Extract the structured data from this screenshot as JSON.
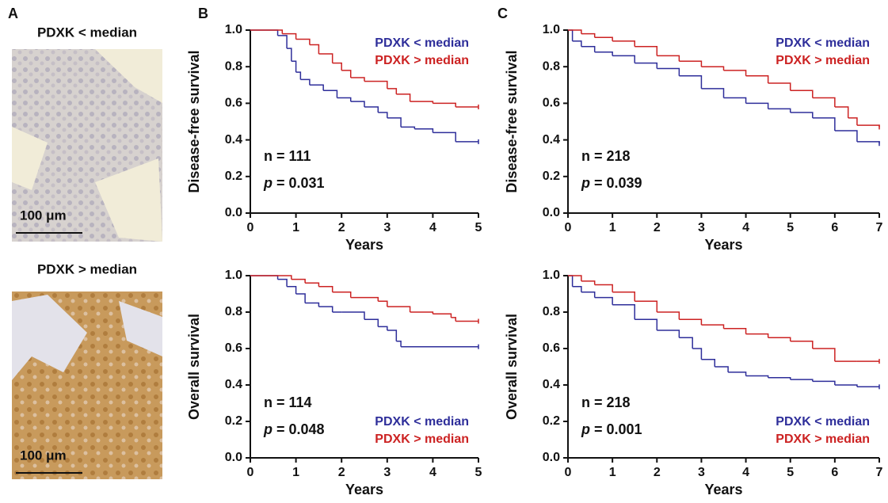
{
  "panel_labels": [
    "A",
    "B",
    "C"
  ],
  "images": [
    {
      "label": "PDXK < median",
      "scale": "100 μm"
    },
    {
      "label": "PDXK > median",
      "scale": "100 μm"
    }
  ],
  "chart_data": [
    {
      "type": "line",
      "step": true,
      "xlabel": "Years",
      "ylabel": "Disease-free survival",
      "legend": "upper right",
      "annotations": [
        "n = 111",
        "p = 0.031"
      ],
      "xlim": [
        0,
        5
      ],
      "xticks": [
        0,
        1,
        2,
        3,
        4,
        5
      ],
      "ylim": [
        0,
        1
      ],
      "yticks": [
        {
          "value": 0,
          "label": "0.0"
        },
        0.2,
        0.4,
        0.6,
        0.8,
        {
          "value": 1,
          "label": "1.0"
        }
      ],
      "series": [
        {
          "name": "PDXK < median",
          "color": "#2e2e9a",
          "x": [
            0,
            0.6,
            0.8,
            0.9,
            1.0,
            1.1,
            1.3,
            1.6,
            1.9,
            2.2,
            2.5,
            2.8,
            3.0,
            3.3,
            3.6,
            4.0,
            4.5,
            5.0
          ],
          "values": [
            1,
            0.97,
            0.9,
            0.83,
            0.77,
            0.73,
            0.7,
            0.67,
            0.63,
            0.61,
            0.58,
            0.55,
            0.52,
            0.47,
            0.46,
            0.44,
            0.39,
            0.39
          ]
        },
        {
          "name": "PDXK > median",
          "color": "#cc2222",
          "x": [
            0,
            0.7,
            1.0,
            1.3,
            1.5,
            1.8,
            2.0,
            2.2,
            2.5,
            3.0,
            3.2,
            3.5,
            4.0,
            4.5,
            5.0
          ],
          "values": [
            1,
            0.98,
            0.95,
            0.92,
            0.87,
            0.82,
            0.78,
            0.74,
            0.72,
            0.68,
            0.65,
            0.61,
            0.6,
            0.58,
            0.58
          ]
        }
      ]
    },
    {
      "type": "line",
      "step": true,
      "xlabel": "Years",
      "ylabel": "Overall survival",
      "legend": "lower right",
      "annotations": [
        "n = 114",
        "p = 0.048"
      ],
      "xlim": [
        0,
        5
      ],
      "xticks": [
        0,
        1,
        2,
        3,
        4,
        5
      ],
      "ylim": [
        0,
        1
      ],
      "yticks": [
        {
          "value": 0,
          "label": "0.0"
        },
        0.2,
        0.4,
        0.6,
        0.8,
        {
          "value": 1,
          "label": "1.0"
        }
      ],
      "series": [
        {
          "name": "PDXK < median",
          "color": "#2e2e9a",
          "x": [
            0,
            0.6,
            0.8,
            1.0,
            1.2,
            1.5,
            1.8,
            2.0,
            2.5,
            2.8,
            3.0,
            3.2,
            3.3,
            5.0
          ],
          "values": [
            1,
            0.98,
            0.94,
            0.9,
            0.85,
            0.83,
            0.8,
            0.8,
            0.76,
            0.72,
            0.7,
            0.64,
            0.61,
            0.61
          ]
        },
        {
          "name": "PDXK > median",
          "color": "#cc2222",
          "x": [
            0,
            0.9,
            1.2,
            1.5,
            1.8,
            2.2,
            2.8,
            3.0,
            3.5,
            4.0,
            4.4,
            4.5,
            5.0
          ],
          "values": [
            1,
            0.98,
            0.96,
            0.94,
            0.91,
            0.88,
            0.86,
            0.83,
            0.8,
            0.79,
            0.77,
            0.75,
            0.75
          ]
        }
      ]
    },
    {
      "type": "line",
      "step": true,
      "xlabel": "Years",
      "ylabel": "Disease-free survival",
      "legend": "upper right",
      "annotations": [
        "n = 218",
        "p = 0.039"
      ],
      "xlim": [
        0,
        7
      ],
      "xticks": [
        0,
        1,
        2,
        3,
        4,
        5,
        6,
        7
      ],
      "ylim": [
        0,
        1
      ],
      "yticks": [
        {
          "value": 0,
          "label": "0.0"
        },
        0.2,
        0.4,
        0.6,
        0.8,
        {
          "value": 1,
          "label": "1.0"
        }
      ],
      "series": [
        {
          "name": "PDXK < median",
          "color": "#2e2e9a",
          "x": [
            0,
            0.1,
            0.3,
            0.6,
            1.0,
            1.5,
            2.0,
            2.5,
            3.0,
            3.5,
            4.0,
            4.5,
            5.0,
            5.5,
            6.0,
            6.5,
            7.0
          ],
          "values": [
            1,
            0.94,
            0.91,
            0.88,
            0.86,
            0.82,
            0.79,
            0.75,
            0.68,
            0.63,
            0.6,
            0.57,
            0.55,
            0.52,
            0.45,
            0.39,
            0.38
          ]
        },
        {
          "name": "PDXK > median",
          "color": "#cc2222",
          "x": [
            0,
            0.3,
            0.6,
            1.0,
            1.5,
            2.0,
            2.5,
            3.0,
            3.5,
            4.0,
            4.5,
            5.0,
            5.5,
            6.0,
            6.3,
            6.5,
            7.0
          ],
          "values": [
            1,
            0.98,
            0.96,
            0.94,
            0.91,
            0.86,
            0.83,
            0.8,
            0.78,
            0.75,
            0.71,
            0.67,
            0.63,
            0.58,
            0.52,
            0.48,
            0.47
          ]
        }
      ]
    },
    {
      "type": "line",
      "step": true,
      "xlabel": "Years",
      "ylabel": "Overall survival",
      "legend": "lower right",
      "annotations": [
        "n = 218",
        "p = 0.001"
      ],
      "xlim": [
        0,
        7
      ],
      "xticks": [
        0,
        1,
        2,
        3,
        4,
        5,
        6,
        7
      ],
      "ylim": [
        0,
        1
      ],
      "yticks": [
        {
          "value": 0,
          "label": "0.0"
        },
        0.2,
        0.4,
        0.6,
        0.8,
        {
          "value": 1,
          "label": "1.0"
        }
      ],
      "series": [
        {
          "name": "PDXK < median",
          "color": "#2e2e9a",
          "x": [
            0,
            0.1,
            0.3,
            0.6,
            1.0,
            1.5,
            2.0,
            2.5,
            2.8,
            3.0,
            3.3,
            3.6,
            4.0,
            4.5,
            5.0,
            5.5,
            6.0,
            6.5,
            7.0
          ],
          "values": [
            1,
            0.94,
            0.91,
            0.88,
            0.84,
            0.76,
            0.7,
            0.66,
            0.6,
            0.54,
            0.5,
            0.47,
            0.45,
            0.44,
            0.43,
            0.42,
            0.4,
            0.39,
            0.39
          ]
        },
        {
          "name": "PDXK > median",
          "color": "#cc2222",
          "x": [
            0,
            0.3,
            0.6,
            1.0,
            1.5,
            2.0,
            2.5,
            3.0,
            3.5,
            4.0,
            4.5,
            5.0,
            5.5,
            6.0,
            6.5,
            7.0
          ],
          "values": [
            1,
            0.97,
            0.95,
            0.91,
            0.86,
            0.8,
            0.76,
            0.73,
            0.71,
            0.68,
            0.66,
            0.64,
            0.6,
            0.53,
            0.53,
            0.53
          ]
        }
      ]
    }
  ]
}
